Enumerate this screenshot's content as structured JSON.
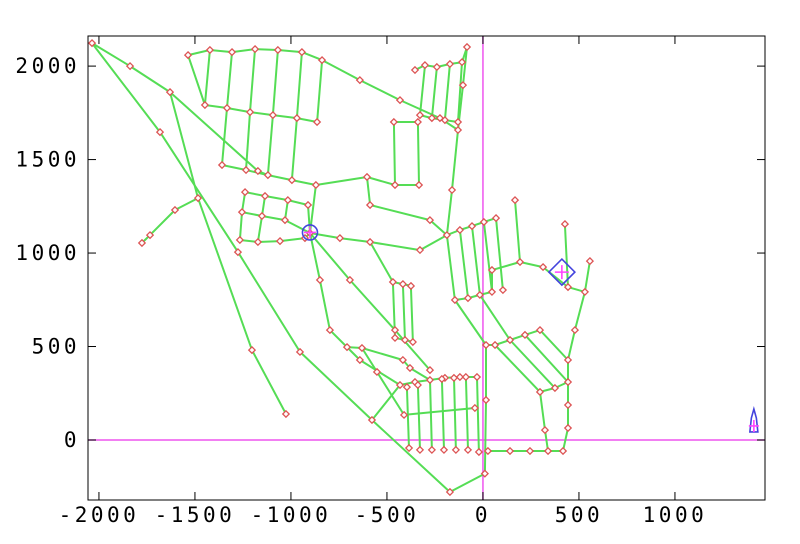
{
  "window": {
    "background": "#ffffff"
  },
  "chart_data": {
    "type": "line",
    "subtype": "road-network-map",
    "title": "",
    "xlabel": "",
    "ylabel": "",
    "xlim": [
      -2057,
      1469
    ],
    "ylim": [
      -321,
      2161
    ],
    "x_ticks": [
      -2000,
      -1500,
      -1000,
      -500,
      0,
      500,
      1000
    ],
    "y_ticks": [
      0,
      500,
      1000,
      1500,
      2000
    ],
    "x_tick_labels": [
      "-2000",
      "-1500",
      "-1000",
      "-500",
      "0",
      "500",
      "1000"
    ],
    "y_tick_labels": [
      "0",
      "500",
      "1000",
      "1500",
      "2000"
    ],
    "grid": false,
    "legend": null,
    "colors": {
      "road": "#55dd55",
      "node_stroke": "#dd5555",
      "node_fill": "#ffffff",
      "crosshair": "#ee55ee",
      "pose_outline": "#4444dd",
      "pose_cross": "#ff44ff",
      "axis": "#000000",
      "background": "#ffffff"
    },
    "crosshair": {
      "x": 0,
      "y": 0
    },
    "special_markers": [
      {
        "name": "robot-pose-circle",
        "shape": "circle-cross",
        "x": -901,
        "y": 1110
      },
      {
        "name": "goal-diamond",
        "shape": "diamond-cross",
        "x": 411,
        "y": 898
      },
      {
        "name": "pose-arrow",
        "shape": "arrow-cross",
        "x": 1411,
        "y": 91
      }
    ],
    "edges": [
      [
        -2036,
        2123,
        -1682,
        1647
      ],
      [
        -1682,
        1647,
        -1276,
        1005
      ],
      [
        -1276,
        1005,
        -953,
        471
      ],
      [
        -953,
        471,
        -578,
        107
      ],
      [
        -578,
        107,
        -172,
        -278
      ],
      [
        -2036,
        2123,
        -1838,
        2000
      ],
      [
        -1838,
        2000,
        -1630,
        1861
      ],
      [
        -1630,
        1861,
        -1172,
        1439
      ],
      [
        -1630,
        1861,
        -1484,
        1294
      ],
      [
        -1484,
        1294,
        -1203,
        481
      ],
      [
        -1203,
        481,
        -1026,
        139
      ],
      [
        -1484,
        1294,
        -1604,
        1230
      ],
      [
        -1604,
        1230,
        -1734,
        1096
      ],
      [
        -1734,
        1096,
        -1776,
        1054
      ],
      [
        -1536,
        2059,
        -1422,
        2086
      ],
      [
        -1422,
        2086,
        -1307,
        2075
      ],
      [
        -1307,
        2075,
        -1187,
        2091
      ],
      [
        -1187,
        2091,
        -1068,
        2086
      ],
      [
        -1068,
        2086,
        -943,
        2075
      ],
      [
        -943,
        2075,
        -838,
        2032
      ],
      [
        -1422,
        2086,
        -1448,
        1792
      ],
      [
        -1307,
        2075,
        -1333,
        1776
      ],
      [
        -1187,
        2091,
        -1213,
        1754
      ],
      [
        -1068,
        2086,
        -1094,
        1738
      ],
      [
        -943,
        2075,
        -969,
        1722
      ],
      [
        -838,
        2032,
        -864,
        1701
      ],
      [
        -1448,
        1792,
        -1333,
        1776
      ],
      [
        -1333,
        1776,
        -1213,
        1754
      ],
      [
        -1213,
        1754,
        -1094,
        1738
      ],
      [
        -1094,
        1738,
        -969,
        1722
      ],
      [
        -969,
        1722,
        -864,
        1701
      ],
      [
        -1333,
        1776,
        -1359,
        1471
      ],
      [
        -1213,
        1754,
        -1234,
        1444
      ],
      [
        -1094,
        1738,
        -1120,
        1417
      ],
      [
        -969,
        1722,
        -995,
        1390
      ],
      [
        -1359,
        1471,
        -1234,
        1444
      ],
      [
        -1234,
        1444,
        -1120,
        1417
      ],
      [
        -1120,
        1417,
        -995,
        1390
      ],
      [
        -995,
        1390,
        -870,
        1364
      ],
      [
        -1172,
        1439,
        -1120,
        1417
      ],
      [
        -1536,
        2059,
        -1448,
        1792
      ],
      [
        -838,
        2032,
        -641,
        1925
      ],
      [
        -641,
        1925,
        -432,
        1818
      ],
      [
        -432,
        1818,
        -224,
        1722
      ],
      [
        -354,
        1979,
        -302,
        2005
      ],
      [
        -302,
        2005,
        -240,
        1995
      ],
      [
        -240,
        1995,
        -172,
        2011
      ],
      [
        -172,
        2011,
        -109,
        2021
      ],
      [
        -109,
        2021,
        -83,
        2102
      ],
      [
        -302,
        2005,
        -328,
        1738
      ],
      [
        -240,
        1995,
        -266,
        1722
      ],
      [
        -172,
        2011,
        -198,
        1711
      ],
      [
        -109,
        2021,
        -130,
        1701
      ],
      [
        -328,
        1738,
        -266,
        1722
      ],
      [
        -266,
        1722,
        -198,
        1711
      ],
      [
        -198,
        1711,
        -130,
        1701
      ],
      [
        -83,
        2102,
        -104,
        1898
      ],
      [
        -104,
        1898,
        -130,
        1658
      ],
      [
        -130,
        1658,
        -161,
        1337
      ],
      [
        -161,
        1337,
        -188,
        1096
      ],
      [
        -224,
        1722,
        -130,
        1658
      ],
      [
        -870,
        1364,
        -604,
        1407
      ],
      [
        -604,
        1407,
        -588,
        1257
      ],
      [
        -588,
        1257,
        -276,
        1176
      ],
      [
        -276,
        1176,
        -188,
        1096
      ],
      [
        -604,
        1407,
        -458,
        1364
      ],
      [
        -464,
        1701,
        -339,
        1701
      ],
      [
        -464,
        1701,
        -458,
        1364
      ],
      [
        -339,
        1701,
        -333,
        1364
      ],
      [
        -458,
        1364,
        -333,
        1364
      ],
      [
        -1239,
        1326,
        -1135,
        1305
      ],
      [
        -1135,
        1305,
        -1016,
        1283
      ],
      [
        -1016,
        1283,
        -911,
        1257
      ],
      [
        -1239,
        1326,
        -1255,
        1219
      ],
      [
        -1135,
        1305,
        -1151,
        1198
      ],
      [
        -1016,
        1283,
        -1031,
        1176
      ],
      [
        -911,
        1257,
        -901,
        1107
      ],
      [
        -1255,
        1219,
        -1151,
        1198
      ],
      [
        -1151,
        1198,
        -1031,
        1176
      ],
      [
        -1031,
        1176,
        -901,
        1107
      ],
      [
        -1255,
        1219,
        -1266,
        1070
      ],
      [
        -1151,
        1198,
        -1172,
        1059
      ],
      [
        -1266,
        1070,
        -1172,
        1059
      ],
      [
        -1172,
        1059,
        -1057,
        1064
      ],
      [
        -1057,
        1064,
        -927,
        1080
      ],
      [
        -927,
        1080,
        -901,
        1107
      ],
      [
        -901,
        1107,
        -870,
        1364
      ],
      [
        -901,
        1107,
        -745,
        1080
      ],
      [
        -745,
        1080,
        -588,
        1059
      ],
      [
        -588,
        1059,
        -328,
        1016
      ],
      [
        -328,
        1016,
        -188,
        1096
      ],
      [
        -901,
        1107,
        -849,
        856
      ],
      [
        -849,
        856,
        -797,
        588
      ],
      [
        -797,
        588,
        -641,
        428
      ],
      [
        -641,
        428,
        -432,
        294
      ],
      [
        -901,
        1107,
        -693,
        856
      ],
      [
        -693,
        856,
        -458,
        588
      ],
      [
        -458,
        588,
        -276,
        374
      ],
      [
        -588,
        1059,
        -469,
        845
      ],
      [
        -469,
        845,
        -417,
        834
      ],
      [
        -417,
        834,
        -375,
        824
      ],
      [
        -469,
        845,
        -458,
        546
      ],
      [
        -417,
        834,
        -406,
        535
      ],
      [
        -375,
        824,
        -365,
        524
      ],
      [
        -458,
        546,
        -406,
        535
      ],
      [
        -406,
        535,
        -365,
        524
      ],
      [
        -188,
        1096,
        -146,
        749
      ],
      [
        -120,
        1123,
        -78,
        759
      ],
      [
        -57,
        1144,
        -16,
        776
      ],
      [
        5,
        1166,
        47,
        792
      ],
      [
        -188,
        1096,
        -120,
        1123
      ],
      [
        -120,
        1123,
        -57,
        1144
      ],
      [
        -57,
        1144,
        5,
        1166
      ],
      [
        5,
        1166,
        68,
        1187
      ],
      [
        -146,
        749,
        -78,
        759
      ],
      [
        -78,
        759,
        -16,
        776
      ],
      [
        -16,
        776,
        47,
        792
      ],
      [
        68,
        1187,
        104,
        802
      ],
      [
        47,
        792,
        47,
        909
      ],
      [
        47,
        909,
        193,
        952
      ],
      [
        193,
        952,
        313,
        925
      ],
      [
        313,
        925,
        443,
        818
      ],
      [
        427,
        1155,
        443,
        818
      ],
      [
        557,
        957,
        531,
        792
      ],
      [
        443,
        818,
        531,
        792
      ],
      [
        531,
        792,
        479,
        588
      ],
      [
        193,
        952,
        167,
        1283
      ],
      [
        63,
        508,
        297,
        257
      ],
      [
        141,
        535,
        375,
        278
      ],
      [
        219,
        562,
        443,
        310
      ],
      [
        297,
        588,
        443,
        428
      ],
      [
        63,
        508,
        141,
        535
      ],
      [
        141,
        535,
        219,
        562
      ],
      [
        219,
        562,
        297,
        588
      ],
      [
        297,
        257,
        375,
        278
      ],
      [
        375,
        278,
        443,
        310
      ],
      [
        443,
        428,
        443,
        310
      ],
      [
        443,
        310,
        443,
        187
      ],
      [
        443,
        187,
        443,
        64
      ],
      [
        297,
        257,
        323,
        53
      ],
      [
        323,
        53,
        339,
        -59
      ],
      [
        26,
        -59,
        141,
        -59
      ],
      [
        141,
        -59,
        245,
        -59
      ],
      [
        245,
        -59,
        339,
        -59
      ],
      [
        339,
        -59,
        417,
        -59
      ],
      [
        417,
        -59,
        443,
        64
      ],
      [
        16,
        508,
        16,
        214
      ],
      [
        16,
        214,
        10,
        -180
      ],
      [
        -172,
        -278,
        10,
        -180
      ],
      [
        16,
        508,
        63,
        508
      ],
      [
        479,
        588,
        443,
        428
      ],
      [
        -146,
        749,
        16,
        508
      ],
      [
        -16,
        776,
        141,
        535
      ],
      [
        -432,
        294,
        -354,
        310
      ],
      [
        -354,
        310,
        -276,
        321
      ],
      [
        -276,
        321,
        -198,
        332
      ],
      [
        -198,
        332,
        -120,
        337
      ],
      [
        -120,
        337,
        -31,
        337
      ],
      [
        -396,
        283,
        -385,
        -43
      ],
      [
        -339,
        294,
        -328,
        -53
      ],
      [
        -276,
        321,
        -266,
        -53
      ],
      [
        -214,
        326,
        -203,
        -53
      ],
      [
        -151,
        332,
        -141,
        -53
      ],
      [
        -89,
        337,
        -78,
        -53
      ],
      [
        -31,
        337,
        -21,
        -64
      ],
      [
        -411,
        134,
        -42,
        171
      ],
      [
        -432,
        294,
        -578,
        107
      ],
      [
        -708,
        497,
        -630,
        492
      ],
      [
        -630,
        492,
        -417,
        428
      ],
      [
        -417,
        428,
        -380,
        385
      ],
      [
        -630,
        492,
        -552,
        364
      ],
      [
        -552,
        364,
        -411,
        134
      ],
      [
        -380,
        385,
        -276,
        321
      ]
    ]
  }
}
